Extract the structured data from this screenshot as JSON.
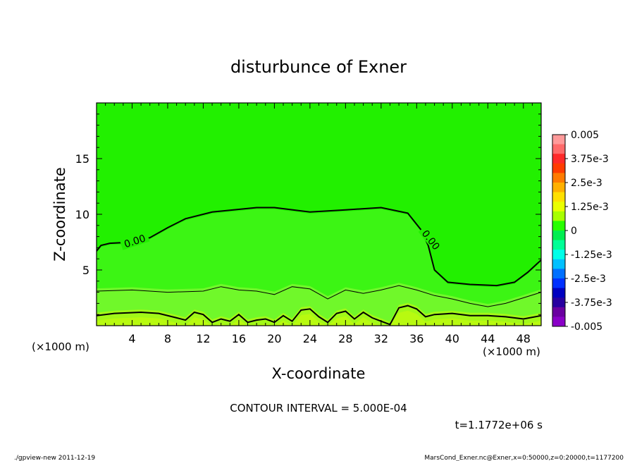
{
  "chart_data": {
    "type": "heatmap",
    "title": "disturbunce of Exner",
    "xlabel": "X-coordinate",
    "ylabel": "Z-coordinate",
    "x_unit_left": "(×1000 m)",
    "x_unit_right": "(×1000 m)",
    "xlim": [
      0,
      50
    ],
    "ylim": [
      0,
      20
    ],
    "x_ticks": [
      4,
      8,
      12,
      16,
      20,
      24,
      28,
      32,
      36,
      40,
      44,
      48
    ],
    "y_ticks": [
      5,
      10,
      15
    ],
    "colorbar": {
      "labels": [
        "0.005",
        "3.75e-3",
        "2.5e-3",
        "1.25e-3",
        "0",
        "-1.25e-3",
        "-2.5e-3",
        "-3.75e-3",
        "-0.005"
      ],
      "colors": [
        "#ff9a9a",
        "#ff6a6a",
        "#ff2a2a",
        "#ff3c00",
        "#ff7b00",
        "#ffb000",
        "#ffe000",
        "#eaff00",
        "#a8ff00",
        "#28ff00",
        "#00ee50",
        "#00ff96",
        "#00ffe8",
        "#00c0ff",
        "#0070ff",
        "#0030ff",
        "#0000c0",
        "#2800a0",
        "#6a00a0",
        "#8a00c8"
      ]
    },
    "contour_labels": [
      "0.00",
      "0.00"
    ],
    "contour_interval_text": "CONTOUR INTERVAL = 5.000E-04",
    "time_text": "t=1.1772e+06 s",
    "zero_contour": {
      "x": [
        0,
        0.5,
        1.5,
        4,
        6,
        8,
        10,
        13,
        18,
        20,
        24,
        28,
        32,
        35,
        36.5,
        37.3,
        38,
        39.5,
        42,
        45,
        47,
        48.5,
        50
      ],
      "z": [
        6.7,
        7.2,
        7.4,
        7.5,
        7.9,
        8.8,
        9.6,
        10.2,
        10.6,
        10.6,
        10.2,
        10.4,
        10.6,
        10.1,
        8.6,
        7.2,
        5.0,
        3.9,
        3.7,
        3.6,
        3.9,
        4.8,
        5.9
      ]
    },
    "mid_contour": {
      "x": [
        0,
        4,
        8,
        12,
        14,
        16,
        18,
        20,
        22,
        24,
        26,
        28,
        30,
        32,
        34,
        36,
        38,
        40,
        42,
        44,
        46,
        48,
        50
      ],
      "z": [
        3.1,
        3.2,
        3.0,
        3.1,
        3.5,
        3.2,
        3.1,
        2.8,
        3.5,
        3.3,
        2.4,
        3.2,
        2.9,
        3.2,
        3.6,
        3.2,
        2.7,
        2.4,
        2.0,
        1.7,
        2.0,
        2.5,
        3.0
      ]
    },
    "low_contour": {
      "x": [
        0,
        2,
        5,
        7,
        9,
        10,
        11,
        12,
        13,
        14,
        15,
        16,
        17,
        18,
        19,
        20,
        21,
        22,
        23,
        24,
        25,
        26,
        27,
        28,
        29,
        30,
        31,
        32,
        33,
        34,
        35,
        36,
        37,
        38,
        40,
        42,
        44,
        46,
        48,
        50
      ],
      "z": [
        0.9,
        1.1,
        1.2,
        1.1,
        0.7,
        0.5,
        1.2,
        1.0,
        0.3,
        0.6,
        0.4,
        1.0,
        0.3,
        0.5,
        0.6,
        0.3,
        0.9,
        0.4,
        1.4,
        1.5,
        0.8,
        0.3,
        1.1,
        1.3,
        0.6,
        1.2,
        0.7,
        0.4,
        0.1,
        1.6,
        1.8,
        1.5,
        0.8,
        1.0,
        1.1,
        0.9,
        0.9,
        0.8,
        0.6,
        0.9
      ]
    }
  },
  "footer": {
    "left": "./gpview-new   2011-12-19",
    "right": "MarsCond_Exner.nc@Exner,x=0:50000,z=0:20000,t=1177200"
  }
}
